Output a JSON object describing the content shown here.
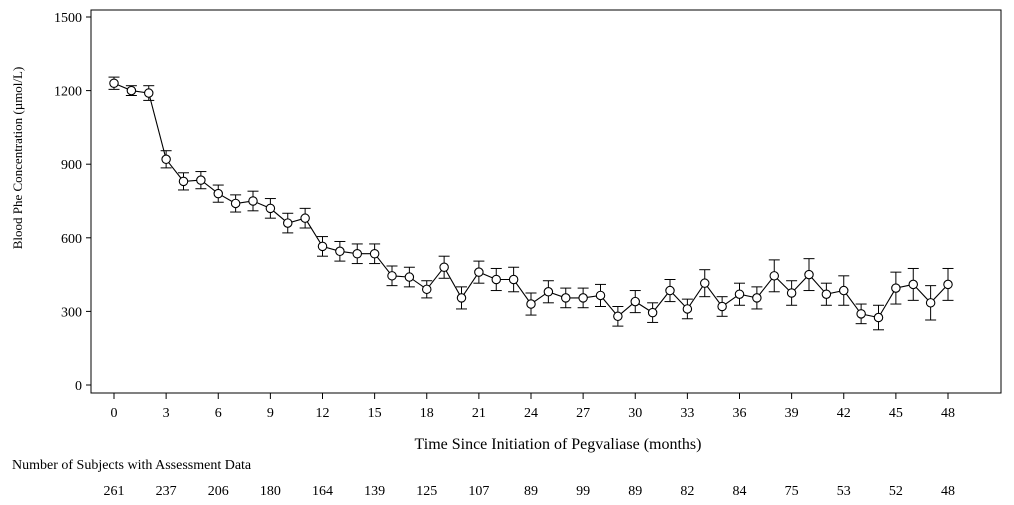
{
  "chart_data": {
    "type": "line",
    "xlabel": "Time Since Initiation of Pegvaliase (months)",
    "ylabel": "Blood Phe Concentration (µmol/L)",
    "xlim": [
      -1.5,
      53
    ],
    "ylim": [
      -30,
      1530
    ],
    "x_ticks": [
      0,
      3,
      6,
      9,
      12,
      15,
      18,
      21,
      24,
      27,
      30,
      33,
      36,
      39,
      42,
      45,
      48
    ],
    "y_ticks": [
      0,
      300,
      600,
      900,
      1200,
      1500
    ],
    "error_bars": true,
    "series": [
      {
        "x": [
          0,
          1,
          2,
          3,
          4,
          5,
          6,
          7,
          8,
          9,
          10,
          11,
          12,
          13,
          14,
          15,
          16,
          17,
          18,
          19,
          20,
          21,
          22,
          23,
          24,
          25,
          26,
          27,
          28,
          29,
          30,
          31,
          32,
          33,
          34,
          35,
          36,
          37,
          38,
          39,
          40,
          41,
          42,
          43,
          44,
          45,
          46,
          47,
          48
        ],
        "y": [
          1230,
          1200,
          1190,
          920,
          830,
          835,
          780,
          740,
          750,
          720,
          660,
          680,
          565,
          545,
          535,
          535,
          445,
          440,
          390,
          480,
          355,
          460,
          430,
          430,
          330,
          380,
          355,
          355,
          365,
          280,
          340,
          295,
          385,
          310,
          415,
          320,
          370,
          355,
          445,
          375,
          450,
          370,
          385,
          290,
          275,
          395,
          410,
          335,
          410
        ],
        "err": [
          25,
          20,
          30,
          35,
          35,
          35,
          35,
          35,
          40,
          40,
          40,
          40,
          40,
          40,
          40,
          40,
          40,
          40,
          35,
          45,
          45,
          45,
          45,
          50,
          45,
          45,
          40,
          40,
          45,
          40,
          45,
          40,
          45,
          40,
          55,
          40,
          45,
          45,
          65,
          50,
          65,
          45,
          60,
          40,
          50,
          65,
          65,
          70,
          65
        ]
      }
    ],
    "subjects": {
      "caption": "Number of Subjects with Assessment Data",
      "x": [
        0,
        3,
        6,
        9,
        12,
        15,
        18,
        21,
        24,
        27,
        30,
        33,
        36,
        39,
        42,
        45,
        48
      ],
      "counts": [
        "261",
        "237",
        "206",
        "180",
        "164",
        "139",
        "125",
        "107",
        "89",
        "99",
        "89",
        "82",
        "84",
        "75",
        "53",
        "52",
        "48"
      ]
    }
  }
}
